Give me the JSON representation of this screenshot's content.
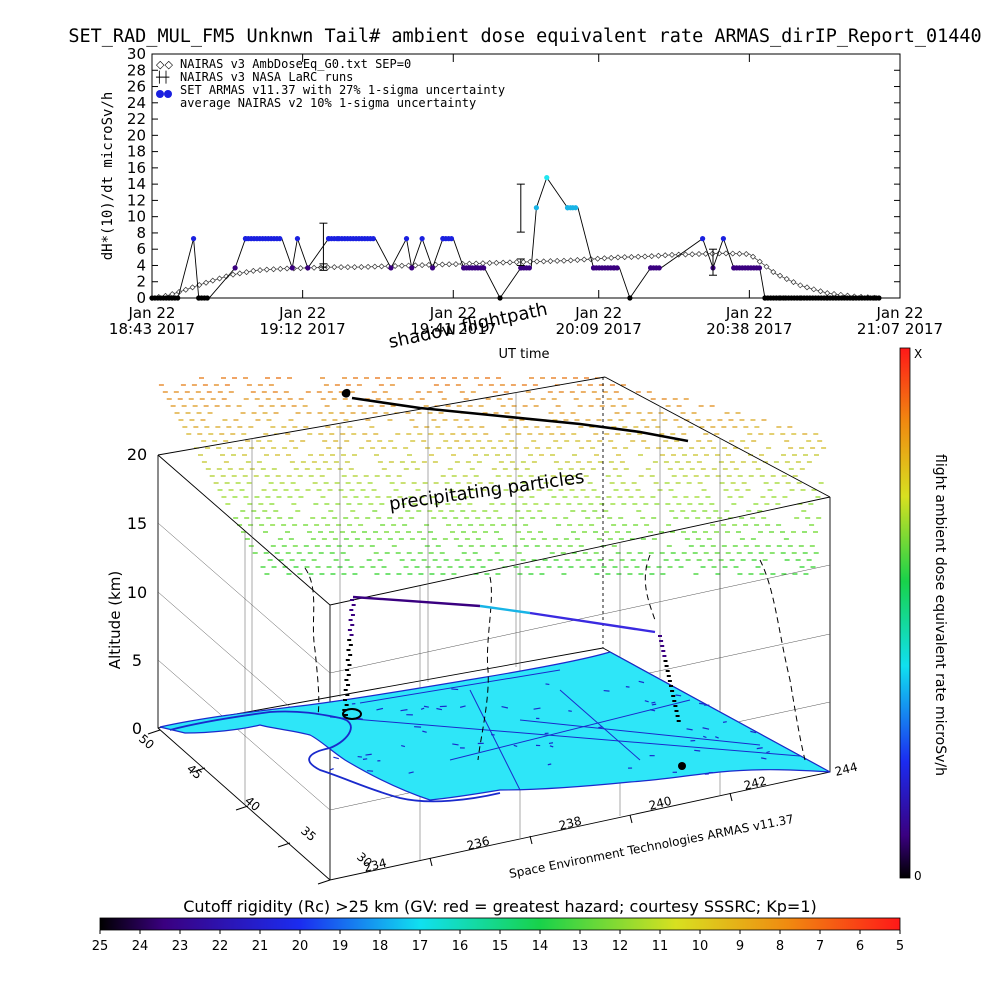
{
  "header": {
    "title": "SET_RAD_MUL_FM5 Unknwn Tail#  ambient dose equivalent rate ARMAS_dirIP_Report_01440"
  },
  "chart_data": [
    {
      "type": "line",
      "title": "SET_RAD_MUL_FM5 Unknwn Tail#  ambient dose equivalent rate ARMAS_dirIP_Report_01440",
      "ylabel": "dH*(10)/dt microSv/h",
      "xlabel": "UT time",
      "ylim": [
        0,
        30
      ],
      "yticks": [
        "0",
        "2",
        "4",
        "6",
        "8",
        "10",
        "12",
        "14",
        "16",
        "18",
        "20",
        "22",
        "24",
        "26",
        "28",
        "30"
      ],
      "xlim_minutes": [
        0,
        144
      ],
      "xtick_labels": [
        {
          "minute": 0,
          "line1": "Jan 22",
          "line2": "18:43 2017"
        },
        {
          "minute": 29,
          "line1": "Jan 22",
          "line2": "19:12 2017"
        },
        {
          "minute": 58,
          "line1": "Jan 22",
          "line2": "19:41 2017"
        },
        {
          "minute": 86,
          "line1": "Jan 22",
          "line2": "20:09 2017"
        },
        {
          "minute": 115,
          "line1": "Jan 22",
          "line2": "20:38 2017"
        },
        {
          "minute": 144,
          "line1": "Jan 22",
          "line2": "21:07 2017"
        }
      ],
      "legend": [
        {
          "label": "NAIRAS v3 AmbDoseEq_G0.txt SEP=0",
          "symbol": "diamond"
        },
        {
          "label": "NAIRAS v3 NASA LaRC runs",
          "symbol": "error-bar"
        },
        {
          "label": "SET ARMAS v11.37 with 27% 1-sigma uncertainty",
          "symbol": "filled-dot"
        },
        {
          "label": "average NAIRAS v2 10% 1-sigma uncertainty",
          "symbol": "none"
        }
      ],
      "legend_position": "top-left",
      "series": [
        {
          "name": "SET ARMAS v11.37 with 27% 1-sigma uncertainty",
          "x": [
            0,
            5,
            8,
            9,
            11,
            16,
            18,
            25,
            27,
            28,
            30,
            34,
            36,
            43,
            46,
            49,
            50,
            52,
            54,
            56,
            58,
            60,
            64,
            67,
            71,
            73,
            74,
            76,
            80,
            81,
            82,
            85,
            89,
            90,
            92,
            96,
            98,
            106,
            108,
            110,
            112,
            117,
            118,
            121,
            122,
            125,
            130,
            135,
            140
          ],
          "y": [
            0,
            0,
            7.3,
            0,
            0,
            3.7,
            7.3,
            7.3,
            3.7,
            7.3,
            3.7,
            7.3,
            7.3,
            7.3,
            3.7,
            7.3,
            3.7,
            7.3,
            3.7,
            7.3,
            7.3,
            3.7,
            3.7,
            0,
            3.7,
            3.7,
            11.1,
            14.8,
            11.1,
            11.1,
            11.1,
            3.7,
            3.7,
            3.7,
            0,
            3.7,
            3.7,
            7.3,
            3.7,
            7.3,
            3.7,
            3.7,
            0,
            0,
            0,
            0,
            0,
            0,
            0
          ]
        },
        {
          "name": "NAIRAS v3 AmbDoseEq_G0.txt SEP=0",
          "x": [
            0,
            3,
            6,
            10,
            15,
            20,
            25,
            30,
            35,
            40,
            45,
            50,
            55,
            60,
            65,
            70,
            75,
            80,
            85,
            90,
            95,
            100,
            105,
            110,
            115,
            118,
            120,
            125,
            130,
            135,
            140
          ],
          "y": [
            0,
            0.3,
            0.9,
            1.8,
            2.8,
            3.4,
            3.6,
            3.7,
            3.8,
            3.8,
            3.9,
            4.0,
            4.1,
            4.2,
            4.3,
            4.4,
            4.5,
            4.6,
            4.8,
            5.0,
            5.1,
            5.3,
            5.4,
            5.5,
            5.4,
            4.0,
            3.0,
            1.5,
            0.6,
            0.2,
            0
          ]
        }
      ],
      "error_bars": [
        {
          "x": 33,
          "y": 7.3,
          "low": 3.8,
          "high": 9.2
        },
        {
          "x": 33,
          "y": 3.8,
          "low": 3.4,
          "high": 4.2
        },
        {
          "x": 71,
          "y": 11.1,
          "low": 8.1,
          "high": 14.0
        },
        {
          "x": 71,
          "y": 4.4,
          "low": 4.0,
          "high": 4.8
        },
        {
          "x": 108,
          "y": 5.3,
          "low": 2.8,
          "high": 6.0
        }
      ]
    },
    {
      "type": "scatter",
      "title": "",
      "xlabel": "",
      "ylabel": "Altitude (km)",
      "zticks": [
        "0",
        "5",
        "10",
        "15",
        "20"
      ],
      "lon_ticks": [
        "234",
        "236",
        "238",
        "240",
        "242",
        "244"
      ],
      "lat_ticks": [
        "30",
        "35",
        "40",
        "45",
        "50"
      ],
      "credit": "Space Environment Technologies ARMAS v11.37",
      "annotations": [
        "shadow flightpath",
        "precipitating particles",
        "UT time"
      ],
      "grid": true
    }
  ],
  "colorbars": {
    "vertical": {
      "label": "flight ambient dose equivalent rate microSv/h",
      "min_label": "0",
      "max_label": "X"
    },
    "horizontal": {
      "title": "Cutoff rigidity (Rc) >25 km (GV: red = greatest hazard; courtesy SSSRC; Kp=1)",
      "ticks": [
        "25",
        "24",
        "23",
        "22",
        "21",
        "20",
        "19",
        "18",
        "17",
        "16",
        "15",
        "14",
        "13",
        "12",
        "11",
        "10",
        "9",
        "8",
        "7",
        "6",
        "5"
      ]
    }
  },
  "colors": {
    "armas_dark": "#3a0080",
    "armas_blue": "#1a20e0",
    "armas_cyan": "#18b4e6",
    "map_fill": "#2ee6f8",
    "map_edge": "#1a2acc"
  }
}
